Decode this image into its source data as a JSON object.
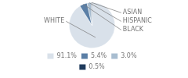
{
  "chart_data": {
    "type": "pie",
    "categories": [
      "WHITE",
      "BLACK",
      "HISPANIC",
      "ASIAN"
    ],
    "values": [
      91.1,
      5.4,
      3.0,
      0.5
    ],
    "value_labels": [
      "91.1%",
      "5.4%",
      "3.0%",
      "0.5%"
    ],
    "colors": [
      "#d9e1ea",
      "#5b7fa6",
      "#a8bdd0",
      "#1f3a5c"
    ],
    "legend": "bottom"
  }
}
